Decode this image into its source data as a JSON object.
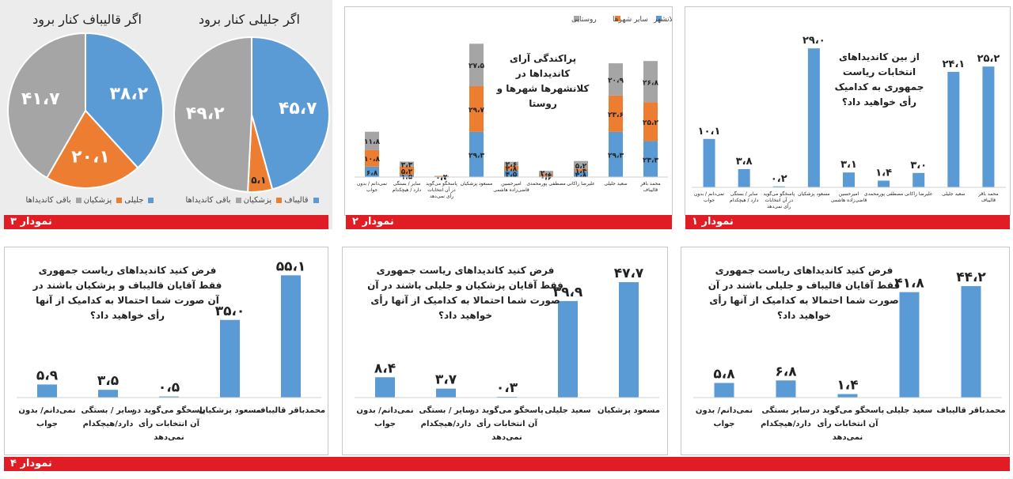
{
  "chart_data": [
    {
      "id": "chart1",
      "type": "bar",
      "title": "از بین کاندیداهای انتخابات ریاست جمهوری به کدامیک رأی خواهید داد؟",
      "categories": [
        "محمد باقر قالیباف",
        "سعید جلیلی",
        "علیرضا زاکانی",
        "مصطفی پورمحمدی",
        "امیرحسین قاضی‌زاده هاشمی",
        "مسعود پزشکیان",
        "پاسخگو می‌گوید در آن انتخابات رأی نمی‌دهد",
        "سایر / بستگی دارد / هیچکدام",
        "نمی‌دانم / بدون جواب"
      ],
      "values": [
        25.2,
        24.1,
        3.0,
        1.4,
        3.1,
        29.0,
        0.2,
        3.8,
        10.1
      ],
      "value_labels": [
        "۲۵،۲",
        "۲۴،۱",
        "۳،۰",
        "۱،۴",
        "۳،۱",
        "۲۹،۰",
        "۰،۲",
        "۳،۸",
        "۱۰،۱"
      ],
      "ylim": [
        0,
        32
      ],
      "color": "#5b9bd5",
      "footer": "نمودار ۱"
    },
    {
      "id": "chart2",
      "type": "bar",
      "stacked": true,
      "title": "پراکندگی آرای کاندیداها در کلانشهرها شهرها و روستا",
      "categories": [
        "محمد باقر قالیباف",
        "سعید جلیلی",
        "علیرضا زاکانی",
        "مصطفی پورمحمدی",
        "امیرحسین قاضی‌زاده هاشمی",
        "مسعود پزشکیان",
        "پاسخگو می‌گوید در آن انتخابات رأی نمی‌دهد",
        "سایر / بستگی دارد / هیچکدام",
        "نمی‌دانم / بدون جواب"
      ],
      "series": [
        {
          "name": "کلانشهر",
          "color": "#5b9bd5",
          "values": [
            23.3,
            29.3,
            3.8,
            0.6,
            4.5,
            29.3,
            0.0,
            1.5,
            6.8
          ],
          "labels": [
            "۲۳،۳",
            "۲۹،۳",
            "۳،۸",
            "۰،۶",
            "۴،۵",
            "۲۹،۳",
            "۰،۰",
            "۱،۵",
            "۶،۸"
          ]
        },
        {
          "name": "سایر شهرها",
          "color": "#ed7d31",
          "values": [
            25.2,
            23.6,
            1.4,
            1.4,
            2.8,
            29.7,
            0.1,
            5.2,
            10.8
          ],
          "labels": [
            "۲۵،۲",
            "۲۳،۶",
            "۱،۴",
            "۱،۴",
            "۲،۸",
            "۲۹،۷",
            "۰،۱",
            "۵،۲",
            "۱۰،۸"
          ]
        },
        {
          "name": "روستایی",
          "color": "#a5a5a5",
          "values": [
            26.8,
            20.9,
            5.2,
            2.0,
            2.6,
            27.5,
            0.2,
            3.3,
            11.8
          ],
          "labels": [
            "۲۶،۸",
            "۲۰،۹",
            "۵،۲",
            "۲،۰",
            "۲،۶",
            "۲۷،۵",
            "۰،۲",
            "۳،۳",
            "۱۱،۸"
          ]
        }
      ],
      "footer": "نمودار ۲"
    },
    {
      "id": "chart3a",
      "type": "pie",
      "title": "اگر جلیلی کنار برود",
      "slices": [
        {
          "name": "قالیباف",
          "value": 45.7,
          "label": "۴۵،۷",
          "color": "#5b9bd5"
        },
        {
          "name": "پزشکیان",
          "value": 5.1,
          "label": "۵،۱",
          "color": "#ed7d31"
        },
        {
          "name": "باقی کاندیداها",
          "value": 49.2,
          "label": "۴۹،۲",
          "color": "#a5a5a5"
        }
      ]
    },
    {
      "id": "chart3b",
      "type": "pie",
      "title": "اگر قالیباف کنار برود",
      "slices": [
        {
          "name": "جلیلی",
          "value": 38.2,
          "label": "۳۸،۲",
          "color": "#5b9bd5"
        },
        {
          "name": "پزشکیان",
          "value": 20.1,
          "label": "۲۰،۱",
          "color": "#ed7d31"
        },
        {
          "name": "باقی کاندیداها",
          "value": 41.7,
          "label": "۴۱،۷",
          "color": "#a5a5a5"
        }
      ],
      "footer": "نمودار ۳"
    },
    {
      "id": "chart4a",
      "type": "bar",
      "title": "فرض کنید کاندیداهای ریاست جمهوری فقط آقایان قالیباف و جلیلی باشند در آن صورت شما احتمالا به کدامیک از آنها رأی خواهید داد؟",
      "categories": [
        "محمدباقر قالیباف",
        "سعید جلیلی",
        "پاسخگو می‌گوید در آن انتخابات رأی نمی‌دهد",
        "سایر بستگی دارد/هیچکدام",
        "نمی‌دانم/ بدون جواب"
      ],
      "values": [
        44.2,
        41.8,
        1.4,
        6.8,
        5.8
      ],
      "value_labels": [
        "۴۴،۲",
        "۴۱،۸",
        "۱،۴",
        "۶،۸",
        "۵،۸"
      ],
      "ylim": [
        0,
        47
      ],
      "color": "#5b9bd5"
    },
    {
      "id": "chart4b",
      "type": "bar",
      "title": "فرض کنید کاندیداهای ریاست جمهوری فقط آقایان پزشکیان و جلیلی باشند در آن صورت شما احتمالا به کدامیک از آنها رأی خواهید داد؟",
      "categories": [
        "مسعود پزشکیان",
        "سعید جلیلی",
        "پاسخگو می‌گوید در آن انتخابات رأی نمی‌دهد",
        "سایر / بستگی دارد/هیچکدام",
        "نمی‌دانم/ بدون جواب"
      ],
      "values": [
        47.7,
        39.9,
        0.3,
        3.7,
        8.4
      ],
      "value_labels": [
        "۴۷،۷",
        "۳۹،۹",
        "۰،۳",
        "۳،۷",
        "۸،۴"
      ],
      "ylim": [
        0,
        49
      ],
      "color": "#5b9bd5"
    },
    {
      "id": "chart4c",
      "type": "bar",
      "title": "فرض کنید کاندیداهای ریاست جمهوری فقط آقایان قالیباف و پزشکیان باشند در آن صورت شما احتمالا به کدامیک از آنها رأی خواهید داد؟",
      "categories": [
        "محمدباقر قالیباف",
        "مسعود پزشکیان",
        "پاسخگو می‌گوید در آن انتخابات رأی نمی‌دهد",
        "سایر / بستگی دارد/هیچکدام",
        "نمی‌دانم/ بدون جواب"
      ],
      "values": [
        55.1,
        35.0,
        0.5,
        3.5,
        5.9
      ],
      "value_labels": [
        "۵۵،۱",
        "۳۵،۰",
        "۰،۵",
        "۳،۵",
        "۵،۹"
      ],
      "ylim": [
        0,
        57
      ],
      "color": "#5b9bd5",
      "footer": "نمودار ۴"
    }
  ]
}
